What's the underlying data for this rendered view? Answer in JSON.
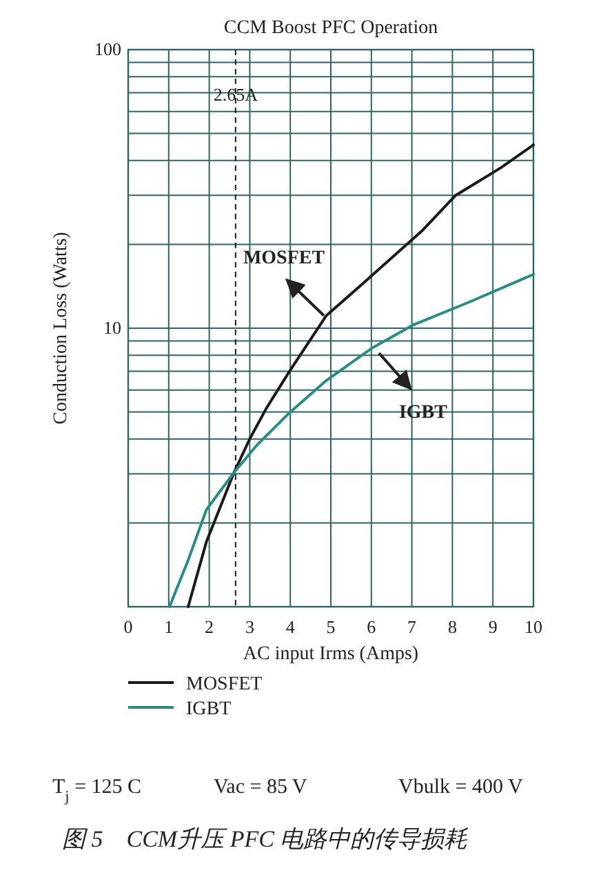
{
  "chart_data": {
    "type": "line",
    "title": "CCM Boost PFC Operation",
    "xlabel": "AC input Irms (Amps)",
    "ylabel": "Conduction Loss (Watts)",
    "log": "y",
    "grid": true,
    "legend": "bottom",
    "xlim": [
      0,
      10
    ],
    "xticks": [
      0,
      1,
      2,
      3,
      4,
      5,
      6,
      7,
      8,
      9,
      10
    ],
    "ylim": [
      1,
      100
    ],
    "yticks": [
      {
        "value": 2,
        "label": null
      },
      {
        "value": 3,
        "label": null
      },
      {
        "value": 4,
        "label": null
      },
      {
        "value": 5,
        "label": null
      },
      {
        "value": 6,
        "label": null
      },
      {
        "value": 7,
        "label": null
      },
      {
        "value": 8,
        "label": null
      },
      {
        "value": 9,
        "label": null
      },
      10,
      {
        "value": 20,
        "label": null
      },
      {
        "value": 30,
        "label": null
      },
      {
        "value": 40,
        "label": null
      },
      {
        "value": 50,
        "label": null
      },
      {
        "value": 60,
        "label": null
      },
      {
        "value": 70,
        "label": null
      },
      {
        "value": 80,
        "label": null
      },
      {
        "value": 90,
        "label": null
      },
      100
    ],
    "series": [
      {
        "name": "MOSFET",
        "color": "#1a1a1a",
        "x": [
          1.48,
          1.93,
          2.61,
          3.01,
          3.41,
          3.98,
          4.89,
          5.8,
          7.27,
          8.07,
          9.2,
          10.0
        ],
        "values": [
          1.0,
          1.71,
          3.03,
          4.03,
          5.16,
          7.0,
          11.1,
          14.5,
          22.5,
          29.9,
          37.7,
          45.5
        ]
      },
      {
        "name": "IGBT",
        "color": "#2a8a84",
        "x": [
          1.02,
          1.48,
          1.93,
          2.61,
          3.18,
          3.98,
          4.89,
          6.02,
          7.05,
          8.41,
          10.0
        ],
        "values": [
          1.0,
          1.47,
          2.23,
          3.03,
          3.81,
          4.97,
          6.49,
          8.49,
          10.3,
          12.4,
          15.6
        ]
      }
    ],
    "ref_lines": [
      {
        "axis": "x",
        "value": 2.65,
        "label": "2.65A",
        "line_style": "dashed",
        "color": "#1a1a1a"
      }
    ],
    "annotations": [
      {
        "text": "MOSFET",
        "x": 4.83,
        "y": 11.1
      },
      {
        "text": "IGBT",
        "x": 6.19,
        "y": 8.14
      },
      "T$_{j}$ = 125 C",
      "Vac = 85 V",
      "Vbulk = 400 V",
      "图 5　CCM升压 PFC 电路中的传导损耗"
    ]
  }
}
